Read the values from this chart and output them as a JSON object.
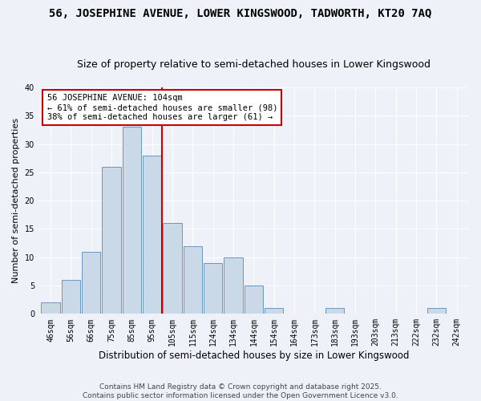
{
  "title": "56, JOSEPHINE AVENUE, LOWER KINGSWOOD, TADWORTH, KT20 7AQ",
  "subtitle": "Size of property relative to semi-detached houses in Lower Kingswood",
  "xlabel": "Distribution of semi-detached houses by size in Lower Kingswood",
  "ylabel": "Number of semi-detached properties",
  "footer_line1": "Contains HM Land Registry data © Crown copyright and database right 2025.",
  "footer_line2": "Contains public sector information licensed under the Open Government Licence v3.0.",
  "bar_labels": [
    "46sqm",
    "56sqm",
    "66sqm",
    "75sqm",
    "85sqm",
    "95sqm",
    "105sqm",
    "115sqm",
    "124sqm",
    "134sqm",
    "144sqm",
    "154sqm",
    "164sqm",
    "173sqm",
    "183sqm",
    "193sqm",
    "203sqm",
    "213sqm",
    "222sqm",
    "232sqm",
    "242sqm"
  ],
  "bar_values": [
    2,
    6,
    11,
    26,
    33,
    28,
    16,
    12,
    9,
    10,
    5,
    1,
    0,
    0,
    1,
    0,
    0,
    0,
    0,
    1,
    0
  ],
  "bar_color": "#c9d9e8",
  "bar_edge_color": "#5a8ab5",
  "property_line_color": "#cc0000",
  "annotation_text": "56 JOSEPHINE AVENUE: 104sqm\n← 61% of semi-detached houses are smaller (98)\n38% of semi-detached houses are larger (61) →",
  "annotation_box_color": "#cc0000",
  "ylim": [
    0,
    40
  ],
  "yticks": [
    0,
    5,
    10,
    15,
    20,
    25,
    30,
    35,
    40
  ],
  "background_color": "#eef2f8",
  "grid_color": "#ffffff",
  "title_fontsize": 10,
  "subtitle_fontsize": 9,
  "xlabel_fontsize": 8.5,
  "ylabel_fontsize": 8,
  "tick_fontsize": 7,
  "annot_fontsize": 7.5,
  "footer_fontsize": 6.5
}
